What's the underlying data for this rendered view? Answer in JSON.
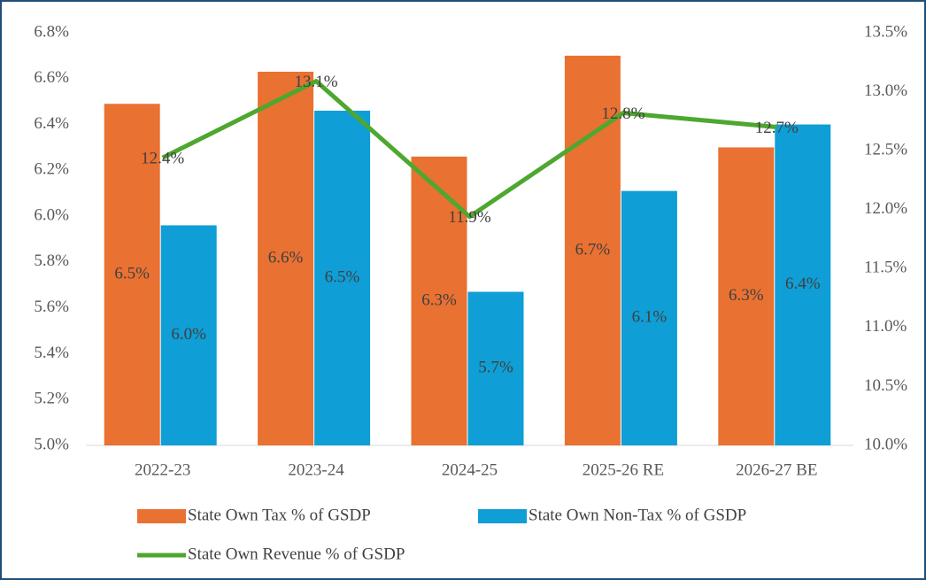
{
  "chart_data": {
    "type": "bar",
    "categories": [
      "2022-23",
      "2023-24",
      "2024-25",
      "2025-26 RE",
      "2026-27 BE"
    ],
    "series": [
      {
        "name": "State Own Tax % of GSDP",
        "color": "#e97132",
        "values": [
          6.49,
          6.63,
          6.26,
          6.7,
          6.3
        ],
        "value_labels": [
          "6.5%",
          "6.6%",
          "6.3%",
          "6.7%",
          "6.3%"
        ]
      },
      {
        "name": "State Own Non-Tax % of GSDP",
        "color": "#0f9ed5",
        "values": [
          5.96,
          6.46,
          5.67,
          6.11,
          6.4
        ],
        "value_labels": [
          "6.0%",
          "6.5%",
          "5.7%",
          "6.1%",
          "6.4%"
        ]
      },
      {
        "name": "State Own Revenue % of GSDP",
        "type": "line",
        "axis": "y2",
        "color": "#4ea72e",
        "values": [
          12.44,
          13.09,
          11.94,
          12.82,
          12.7
        ],
        "value_labels": [
          "12.4%",
          "13.1%",
          "11.9%",
          "12.8%",
          "12.7%"
        ]
      }
    ],
    "ylim": [
      5.0,
      6.8
    ],
    "yticks": [
      {
        "value": 5.0,
        "label": "5.0%"
      },
      {
        "value": 5.2,
        "label": "5.2%"
      },
      {
        "value": 5.4,
        "label": "5.4%"
      },
      {
        "value": 5.6,
        "label": "5.6%"
      },
      {
        "value": 5.8,
        "label": "5.8%"
      },
      {
        "value": 6.0,
        "label": "6.0%"
      },
      {
        "value": 6.2,
        "label": "6.2%"
      },
      {
        "value": 6.4,
        "label": "6.4%"
      },
      {
        "value": 6.6,
        "label": "6.6%"
      },
      {
        "value": 6.8,
        "label": "6.8%"
      }
    ],
    "y2lim": [
      10.0,
      13.5
    ],
    "y2ticks": [
      {
        "value": 10.0,
        "label": "10.0%"
      },
      {
        "value": 10.5,
        "label": "10.5%"
      },
      {
        "value": 11.0,
        "label": "11.0%"
      },
      {
        "value": 11.5,
        "label": "11.5%"
      },
      {
        "value": 12.0,
        "label": "12.0%"
      },
      {
        "value": 12.5,
        "label": "12.5%"
      },
      {
        "value": 13.0,
        "label": "13.0%"
      },
      {
        "value": 13.5,
        "label": "13.5%"
      }
    ]
  }
}
